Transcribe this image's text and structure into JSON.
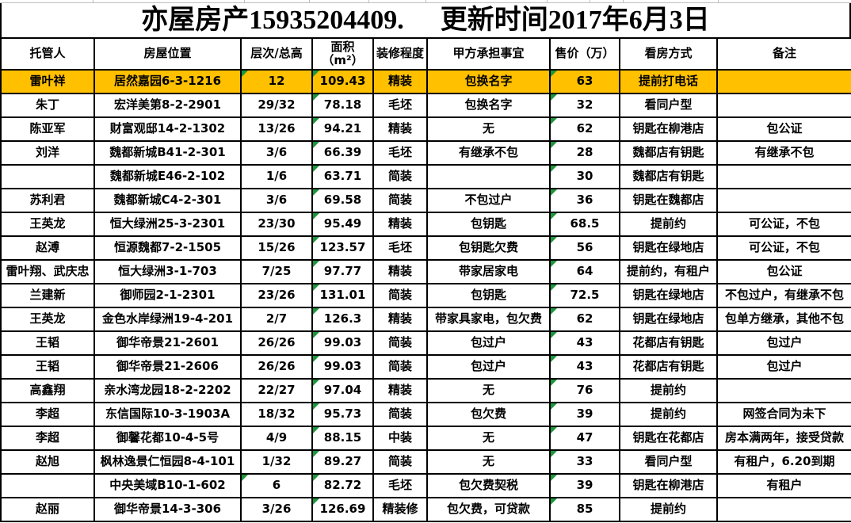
{
  "sheet": {
    "title_left": "亦屋房产15935204409.",
    "title_right": "更新时间2017年6月3日"
  },
  "table": {
    "columns": [
      {
        "key": "trustee",
        "label": "托管人",
        "width": 118
      },
      {
        "key": "location",
        "label": "房屋位置",
        "width": 185
      },
      {
        "key": "floor",
        "label": "层次/总高",
        "width": 90
      },
      {
        "key": "area",
        "label": "面积\n（m²）",
        "width": 77
      },
      {
        "key": "decoration",
        "label": "装修程度",
        "width": 68
      },
      {
        "key": "party-a",
        "label": "甲方承担事宜",
        "width": 155
      },
      {
        "key": "price",
        "label": "售价（万）",
        "width": 88
      },
      {
        "key": "viewing",
        "label": "看房方式",
        "width": 123
      },
      {
        "key": "remarks",
        "label": "备注",
        "width": 170
      }
    ],
    "rows": [
      {
        "cells": [
          "雷叶祥",
          "居然嘉园6-3-1216",
          "12",
          "109.43",
          "精装",
          "包换名字",
          "63",
          "提前打电话",
          ""
        ],
        "highlight": true,
        "flags": [
          2,
          3,
          6
        ]
      },
      {
        "cells": [
          "朱丁",
          "宏洋美第8-2-2901",
          "29/32",
          "78.18",
          "毛坯",
          "包换名字",
          "32",
          "看同户型",
          ""
        ],
        "highlight": false,
        "flags": [
          3,
          6
        ]
      },
      {
        "cells": [
          "陈亚军",
          "财富观邸14-2-1302",
          "13/26",
          "94.21",
          "精装",
          "无",
          "62",
          "钥匙在柳港店",
          "包公证"
        ],
        "highlight": false,
        "flags": [
          3,
          6
        ]
      },
      {
        "cells": [
          "刘洋",
          "魏都新城B41-2-301",
          "3/6",
          "66.39",
          "毛坯",
          "有继承不包",
          "28",
          "魏都店有钥匙",
          "有继承不包"
        ],
        "highlight": false,
        "flags": [
          3,
          6
        ]
      },
      {
        "cells": [
          "",
          "魏都新城E46-2-102",
          "1/6",
          "63.71",
          "简装",
          "",
          "30",
          "魏都店有钥匙",
          ""
        ],
        "highlight": false,
        "flags": [
          3,
          6
        ]
      },
      {
        "cells": [
          "苏利君",
          "魏都新城C4-2-301",
          "3/6",
          "69.58",
          "简装",
          "不包过户",
          "36",
          "钥匙在魏都店",
          ""
        ],
        "highlight": false,
        "flags": [
          3,
          6
        ]
      },
      {
        "cells": [
          "王英龙",
          "恒大绿洲25-3-2301",
          "23/30",
          "95.49",
          "精装",
          "包钥匙",
          "68.5",
          "提前约",
          "可公证，不包"
        ],
        "highlight": false,
        "flags": [
          3,
          6
        ]
      },
      {
        "cells": [
          "赵溥",
          "恒源魏都7-2-1505",
          "15/26",
          "123.57",
          "毛坯",
          "包钥匙欠费",
          "56",
          "钥匙在绿地店",
          "可公证，不包"
        ],
        "highlight": false,
        "flags": [
          3,
          6
        ]
      },
      {
        "cells": [
          "雷叶翔、武庆忠",
          "恒大绿洲3-1-703",
          "7/25",
          "97.77",
          "精装",
          "带家居家电",
          "64",
          "提前约，有租户",
          "包公证"
        ],
        "highlight": false,
        "flags": [
          3,
          6
        ]
      },
      {
        "cells": [
          "兰建新",
          "御师园2-1-2301",
          "23/26",
          "131.01",
          "简装",
          "包钥匙",
          "72.5",
          "钥匙在绿地店",
          "不包过户，有继承不包"
        ],
        "highlight": false,
        "flags": [
          3,
          6
        ]
      },
      {
        "cells": [
          "王英龙",
          "金色水岸绿洲19-4-201",
          "2/7",
          "126.3",
          "精装",
          "带家具家电，包欠费",
          "62",
          "钥匙在绿地店",
          "包单方继承，其他不包"
        ],
        "highlight": false,
        "flags": [
          3,
          6
        ]
      },
      {
        "cells": [
          "王韬",
          "御华帝景21-2601",
          "26/26",
          "99.03",
          "简装",
          "包过户",
          "43",
          "花都店有钥匙",
          "包过户"
        ],
        "highlight": false,
        "flags": [
          3,
          6
        ]
      },
      {
        "cells": [
          "王韬",
          "御华帝景21-2606",
          "26/26",
          "99.03",
          "简装",
          "包过户",
          "43",
          "花都店有钥匙",
          "包过户"
        ],
        "highlight": false,
        "flags": [
          3,
          6
        ]
      },
      {
        "cells": [
          "高鑫翔",
          "亲水湾龙园18-2-2202",
          "22/27",
          "97.04",
          "精装",
          "无",
          "76",
          "提前约",
          ""
        ],
        "highlight": false,
        "flags": [
          3,
          6
        ]
      },
      {
        "cells": [
          "李超",
          "东信国际10-3-1903A",
          "18/32",
          "95.73",
          "简装",
          "包欠费",
          "39",
          "提前约",
          "网签合同为未下"
        ],
        "highlight": false,
        "flags": [
          3,
          6
        ]
      },
      {
        "cells": [
          "李超",
          "御馨花都10-4-5号",
          "4/9",
          "88.15",
          "中装",
          "无",
          "47",
          "钥匙在花都店",
          "房本满两年，接受贷款"
        ],
        "highlight": false,
        "flags": [
          3,
          6
        ]
      },
      {
        "cells": [
          "赵旭",
          "枫林逸景仁恒园8-4-101",
          "1/32",
          "89.27",
          "简装",
          "无",
          "33",
          "看同户型",
          "有租户，6.20到期"
        ],
        "highlight": false,
        "flags": [
          3,
          6
        ]
      },
      {
        "cells": [
          "",
          "中央美域B10-1-602",
          "6",
          "82.72",
          "毛坯",
          "包欠费契税",
          "39",
          "钥匙在柳港店",
          "有租户"
        ],
        "highlight": false,
        "flags": [
          2,
          3,
          6
        ]
      },
      {
        "cells": [
          "赵丽",
          "御华帝景14-3-306",
          "3/26",
          "126.69",
          "精装修",
          "包欠费，可贷款",
          "85",
          "提前约",
          ""
        ],
        "highlight": false,
        "flags": [
          3,
          6
        ]
      }
    ]
  },
  "colors": {
    "highlight": "#FFC000",
    "flag_triangle": "#1E963C",
    "grid_border": "#000000",
    "faint_gridline": "#BFBFBF"
  }
}
